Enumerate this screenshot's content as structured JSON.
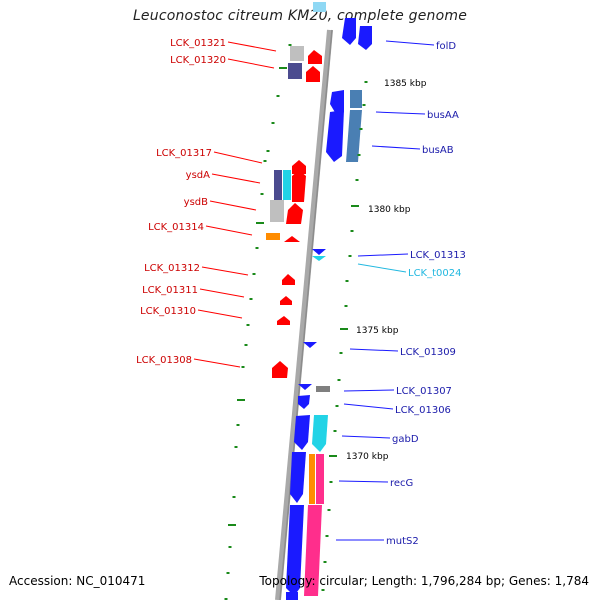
{
  "title": "Leuconostoc citreum KM20, complete genome",
  "accession": "Accession: NC_010471",
  "topology": "Topology: circular; Length: 1,796,284 bp; Genes: 1,784",
  "colors": {
    "red": "#ff0000",
    "blue": "#1a1aff",
    "cyan": "#22d3e6",
    "steel": "#4a7fb3",
    "orange": "#ff8c00",
    "magenta": "#ff2e8c",
    "purple": "#4b4b8f",
    "gray": "#bfbfbf",
    "label_red": "#cc0000",
    "label_blue": "#1a1aaa",
    "label_cyan": "#22b8e0",
    "tick_green": "#1a8a1a"
  },
  "kbp_ticks": [
    {
      "label": "1385 kbp"
    },
    {
      "label": "1380 kbp"
    },
    {
      "label": "1375 kbp"
    },
    {
      "label": "1370 kbp"
    }
  ],
  "left_labels": [
    {
      "text": "LCK_01321"
    },
    {
      "text": "LCK_01320"
    },
    {
      "text": "LCK_01317"
    },
    {
      "text": "ysdA"
    },
    {
      "text": "ysdB"
    },
    {
      "text": "LCK_01314"
    },
    {
      "text": "LCK_01312"
    },
    {
      "text": "LCK_01311"
    },
    {
      "text": "LCK_01310"
    },
    {
      "text": "LCK_01308"
    }
  ],
  "right_labels": [
    {
      "text": "folD"
    },
    {
      "text": "busAA"
    },
    {
      "text": "busAB"
    },
    {
      "text": "LCK_01313"
    },
    {
      "text": "LCK_t0024"
    },
    {
      "text": "LCK_01309"
    },
    {
      "text": "LCK_01307"
    },
    {
      "text": "LCK_01306"
    },
    {
      "text": "gabD"
    },
    {
      "text": "recG"
    },
    {
      "text": "mutS2"
    }
  ]
}
